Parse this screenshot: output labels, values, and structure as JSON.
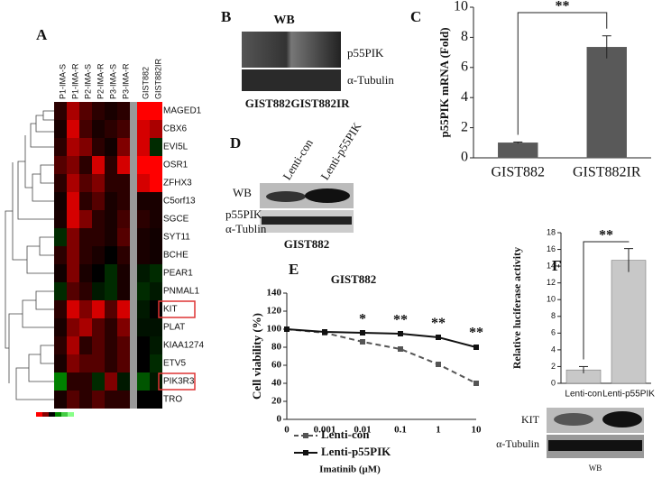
{
  "figure": {
    "A": {
      "letter": "A",
      "columns": [
        "P1-IMA-S",
        "P1-IMA-R",
        "P2-IMA-S",
        "P2-IMA-R",
        "P3-IMA-S",
        "P3-IMA-R",
        "GIST882",
        "GIST882IR"
      ],
      "rows": [
        "MAGED1",
        "CBX6",
        "EVI5L",
        "OSR1",
        "ZFHX3",
        "C5orf13",
        "SGCE",
        "SYT11",
        "BCHE",
        "PEAR1",
        "PNMAL1",
        "KIT",
        "PLAT",
        "KIAA1274",
        "ETV5",
        "PIK3R3",
        "TRO"
      ],
      "highlighted_rows": [
        "KIT",
        "PIK3R3"
      ],
      "values": [
        [
          0.5,
          2,
          1,
          0.5,
          0.3,
          0.5,
          3,
          3
        ],
        [
          0.3,
          2.5,
          0.8,
          0.3,
          0.5,
          0.8,
          2.5,
          2
        ],
        [
          0.5,
          2,
          1.5,
          0.5,
          0.2,
          1.5,
          2.5,
          -0.5
        ],
        [
          1,
          1.5,
          0.5,
          2.5,
          0.5,
          2.5,
          3,
          3
        ],
        [
          0.5,
          2,
          1,
          1.5,
          0.5,
          0.5,
          2.5,
          3
        ],
        [
          0.2,
          2.5,
          0.5,
          1,
          0.3,
          0.5,
          0.3,
          0.3
        ],
        [
          0.3,
          2.5,
          1.5,
          0.5,
          0.3,
          0.8,
          0.5,
          0.3
        ],
        [
          -0.5,
          1.5,
          0.5,
          0.5,
          0.3,
          1,
          0.3,
          0.2
        ],
        [
          0.5,
          1.5,
          0.5,
          0.3,
          0,
          0.5,
          0.3,
          0.2
        ],
        [
          0.2,
          1.5,
          0.3,
          0,
          -0.5,
          0.3,
          -0.3,
          -0.5
        ],
        [
          -0.5,
          1,
          0.5,
          -0.3,
          -0.5,
          0.3,
          -0.5,
          -0.3
        ],
        [
          0.5,
          2.5,
          1.5,
          2.5,
          1,
          2.5,
          -0.3,
          0
        ],
        [
          0.3,
          1.5,
          2,
          1,
          0.5,
          1.5,
          -0.2,
          -0.2
        ],
        [
          0.5,
          2,
          0.5,
          1,
          0.5,
          1,
          0,
          -0.3
        ],
        [
          0.3,
          1.5,
          1,
          1,
          0.5,
          1,
          0,
          -0.5
        ],
        [
          -1.5,
          0.5,
          0.5,
          -0.5,
          1.5,
          -0.3,
          -1,
          -0.3
        ],
        [
          0.3,
          1,
          0.5,
          1,
          0.5,
          0.5,
          0,
          0
        ]
      ]
    },
    "B": {
      "letter": "B",
      "method": "WB",
      "bands": [
        "p55PIK",
        "α-Tubulin"
      ],
      "lanes": [
        "GIST882",
        "GIST882IR"
      ]
    },
    "D": {
      "letter": "D",
      "method": "WB",
      "lanes": [
        "Lenti-con",
        "Lenti-p55PIK"
      ],
      "bands": [
        "p55PIK",
        "α-Tublin"
      ],
      "cell_line": "GIST882"
    },
    "F_blot": {
      "bands": [
        "KIT",
        "α-Tubulin"
      ],
      "method": "WB"
    }
  },
  "chart_data": [
    {
      "type": "bar",
      "letter": "C",
      "y_label": "p55PIK mRNA (Fold)",
      "categories": [
        "GIST882",
        "GIST882IR"
      ],
      "values": [
        1.0,
        7.35
      ],
      "errors": [
        0.05,
        0.75
      ],
      "color": "#595959",
      "ylim": [
        0,
        10
      ],
      "yticks": [
        0,
        2,
        4,
        6,
        8,
        10
      ],
      "significance": "**"
    },
    {
      "type": "line",
      "letter": "E",
      "title": "GIST882",
      "x_label": "Imatinib (μM)",
      "y_label": "Cell viability (%)",
      "categories": [
        "0",
        "0.001",
        "0.01",
        "0.1",
        "1",
        "10"
      ],
      "series": [
        {
          "name": "Lenti-con",
          "color": "#555555",
          "line_style": "dashed",
          "values": [
            100,
            96,
            86,
            78,
            61,
            40
          ],
          "errors": [
            1.5,
            1.5,
            2.5,
            2,
            2,
            3
          ]
        },
        {
          "name": "Lenti-p55PIK",
          "color": "#111111",
          "line_style": "solid",
          "values": [
            100,
            97,
            96,
            95,
            91,
            80
          ],
          "errors": [
            1.5,
            1.5,
            2,
            2,
            2.5,
            3
          ]
        }
      ],
      "ylim": [
        0,
        140
      ],
      "yticks": [
        0,
        20,
        40,
        60,
        80,
        100,
        120,
        140
      ],
      "annotations": [
        {
          "text": "*",
          "category": "0.01"
        },
        {
          "text": "**",
          "category": "0.1"
        },
        {
          "text": "**",
          "category": "1"
        },
        {
          "text": "**",
          "category": "10"
        }
      ]
    },
    {
      "type": "bar",
      "letter": "F",
      "y_label": "Relative luciferase activity",
      "categories": [
        "Lenti-con",
        "Lenti-p55PIK"
      ],
      "values": [
        1.6,
        14.7
      ],
      "errors": [
        0.4,
        1.4
      ],
      "color": "#c8c8c8",
      "ylim": [
        0,
        18
      ],
      "yticks": [
        0,
        2,
        4,
        6,
        8,
        10,
        12,
        14,
        16,
        18
      ],
      "significance": "**"
    }
  ]
}
